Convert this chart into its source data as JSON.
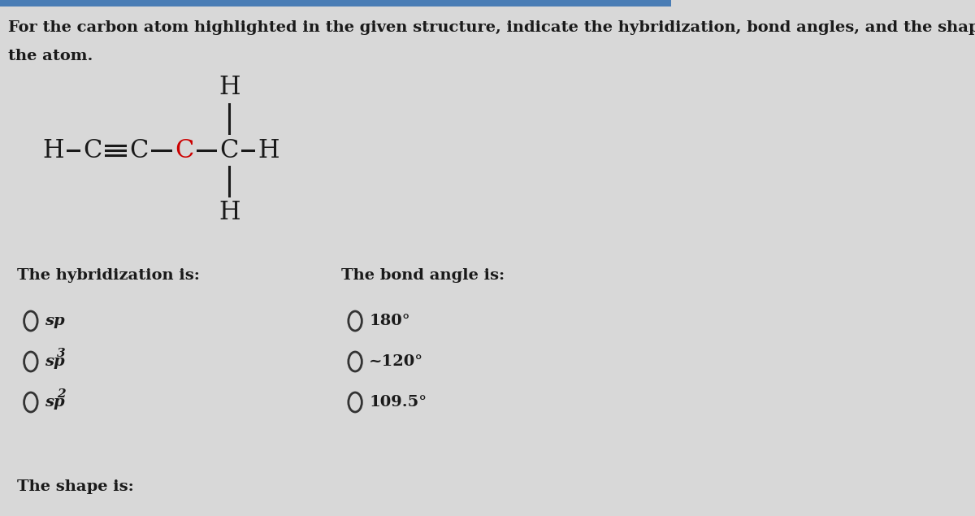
{
  "bg_color": "#d8d8d8",
  "title_line1": "For the carbon atom highlighted in the given structure, indicate the hybridization, bond angles, and the shape around",
  "title_line2": "the atom.",
  "title_fontsize": 14,
  "title_color": "#111111",
  "highlight_color": "#cc0000",
  "normal_color": "#1a1a1a",
  "bond_color": "#1a1a1a",
  "struct_fontsize": 22,
  "hybridization_label": "The hybridization is:",
  "bond_angle_label": "The bond angle is:",
  "label_fontsize": 14,
  "options_left": [
    {
      "base": "sp",
      "sup": ""
    },
    {
      "base": "sp",
      "sup": "3"
    },
    {
      "base": "sp",
      "sup": "2"
    }
  ],
  "options_right": [
    {
      "text": "180°"
    },
    {
      "text": "~120°"
    },
    {
      "text": "109.5°"
    }
  ],
  "option_fontsize": 14,
  "shape_label": "The shape is:",
  "top_bar_color": "#4a7db5",
  "top_bar_right_color": "#6aaedc"
}
